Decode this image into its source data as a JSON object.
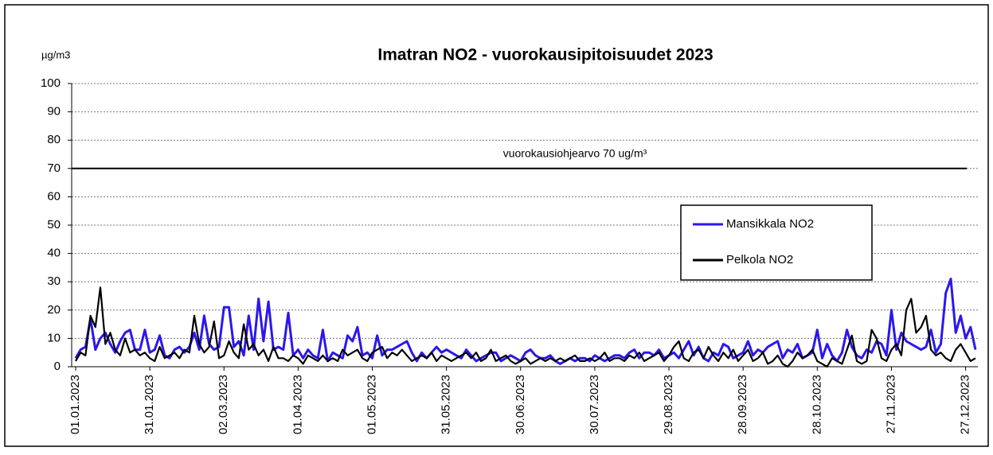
{
  "chart_data": {
    "type": "line",
    "title": "Imatran NO2 - vuorokausipitoisuudet  2023",
    "y_label": "µg/m3",
    "reference_line": {
      "value": 70,
      "label": "vuorokausiohjearvo 70 ug/m³",
      "color": "#000000"
    },
    "categories": [
      "01.01.2023",
      null,
      null,
      null,
      null,
      null,
      null,
      null,
      null,
      null,
      null,
      null,
      null,
      null,
      null,
      "31.01.2023",
      null,
      null,
      null,
      null,
      null,
      null,
      null,
      null,
      null,
      null,
      null,
      null,
      null,
      null,
      "02.03.2023",
      null,
      null,
      null,
      null,
      null,
      null,
      null,
      null,
      null,
      null,
      null,
      null,
      null,
      null,
      "01.04.2023",
      null,
      null,
      null,
      null,
      null,
      null,
      null,
      null,
      null,
      null,
      null,
      null,
      null,
      null,
      "01.05.2023",
      null,
      null,
      null,
      null,
      null,
      null,
      null,
      null,
      null,
      null,
      null,
      null,
      null,
      null,
      "31.05.2023",
      null,
      null,
      null,
      null,
      null,
      null,
      null,
      null,
      null,
      null,
      null,
      null,
      null,
      null,
      "30.06.2023",
      null,
      null,
      null,
      null,
      null,
      null,
      null,
      null,
      null,
      null,
      null,
      null,
      null,
      null,
      "30.07.2023",
      null,
      null,
      null,
      null,
      null,
      null,
      null,
      null,
      null,
      null,
      null,
      null,
      null,
      null,
      "29.08.2023",
      null,
      null,
      null,
      null,
      null,
      null,
      null,
      null,
      null,
      null,
      null,
      null,
      null,
      null,
      "28.09.2023",
      null,
      null,
      null,
      null,
      null,
      null,
      null,
      null,
      null,
      null,
      null,
      null,
      null,
      null,
      "28.10.2023",
      null,
      null,
      null,
      null,
      null,
      null,
      null,
      null,
      null,
      null,
      null,
      null,
      null,
      null,
      "27.11.2023",
      null,
      null,
      null,
      null,
      null,
      null,
      null,
      null,
      null,
      null,
      null,
      null,
      null,
      null,
      "27.12.2023",
      null,
      null
    ],
    "series": [
      {
        "name": "Mansikkala NO2",
        "color": "#2b17ee",
        "values": [
          3,
          6,
          7,
          17,
          6,
          10,
          12,
          8,
          5,
          9,
          12,
          13,
          6,
          6,
          13,
          5,
          6,
          11,
          4,
          3,
          6,
          7,
          5,
          7,
          12,
          6,
          18,
          8,
          6,
          7,
          21,
          21,
          7,
          9,
          4,
          18,
          6,
          24,
          9,
          23,
          6,
          7,
          6,
          19,
          4,
          6,
          3,
          6,
          4,
          3,
          13,
          2,
          5,
          4,
          3,
          11,
          9,
          14,
          4,
          5,
          3,
          11,
          4,
          6,
          6,
          7,
          8,
          9,
          5,
          2,
          5,
          3,
          5,
          7,
          5,
          6,
          5,
          4,
          3,
          6,
          4,
          2,
          3,
          4,
          5,
          5,
          2,
          3,
          4,
          3,
          2,
          5,
          6,
          4,
          3,
          3,
          4,
          2,
          1,
          2,
          3,
          2,
          3,
          3,
          2,
          4,
          3,
          2,
          3,
          4,
          4,
          3,
          5,
          6,
          3,
          5,
          5,
          4,
          6,
          3,
          4,
          5,
          3,
          6,
          9,
          4,
          7,
          3,
          2,
          5,
          4,
          8,
          7,
          3,
          4,
          5,
          9,
          4,
          6,
          5,
          7,
          8,
          9,
          3,
          6,
          5,
          8,
          3,
          4,
          5,
          13,
          3,
          8,
          4,
          2,
          5,
          13,
          7,
          4,
          3,
          6,
          5,
          9,
          8,
          4,
          20,
          6,
          12,
          9,
          8,
          7,
          6,
          7,
          13,
          5,
          8,
          26,
          31,
          12,
          18,
          10,
          14,
          6
        ]
      },
      {
        "name": "Pelkola NO2",
        "color": "#000000",
        "values": [
          2,
          5,
          4,
          18,
          14,
          28,
          8,
          12,
          6,
          4,
          10,
          5,
          6,
          4,
          5,
          3,
          2,
          7,
          3,
          4,
          5,
          3,
          6,
          5,
          18,
          8,
          5,
          7,
          16,
          3,
          4,
          9,
          5,
          3,
          15,
          6,
          8,
          4,
          6,
          2,
          7,
          3,
          3,
          2,
          4,
          3,
          1,
          4,
          3,
          2,
          4,
          2,
          3,
          2,
          6,
          4,
          5,
          6,
          3,
          2,
          5,
          6,
          7,
          3,
          5,
          4,
          6,
          4,
          2,
          3,
          4,
          3,
          5,
          2,
          4,
          3,
          2,
          3,
          4,
          5,
          3,
          5,
          2,
          3,
          6,
          2,
          3,
          4,
          2,
          1,
          2,
          3,
          1,
          2,
          3,
          2,
          3,
          2,
          3,
          2,
          3,
          4,
          2,
          2,
          3,
          2,
          3,
          5,
          2,
          3,
          3,
          2,
          4,
          3,
          5,
          2,
          3,
          4,
          5,
          2,
          4,
          7,
          9,
          3,
          2,
          5,
          6,
          3,
          7,
          4,
          2,
          5,
          3,
          6,
          2,
          4,
          6,
          2,
          3,
          5,
          1,
          2,
          4,
          1,
          0,
          2,
          5,
          3,
          4,
          6,
          2,
          1,
          0,
          3,
          2,
          1,
          6,
          11,
          2,
          1,
          2,
          13,
          10,
          3,
          2,
          6,
          8,
          4,
          20,
          24,
          12,
          14,
          18,
          6,
          4,
          5,
          3,
          2,
          6,
          8,
          5,
          2,
          3
        ]
      }
    ],
    "ylim": [
      0,
      100
    ],
    "yticks": [
      0,
      10,
      20,
      30,
      40,
      50,
      60,
      70,
      80,
      90,
      100
    ],
    "grid": true
  }
}
